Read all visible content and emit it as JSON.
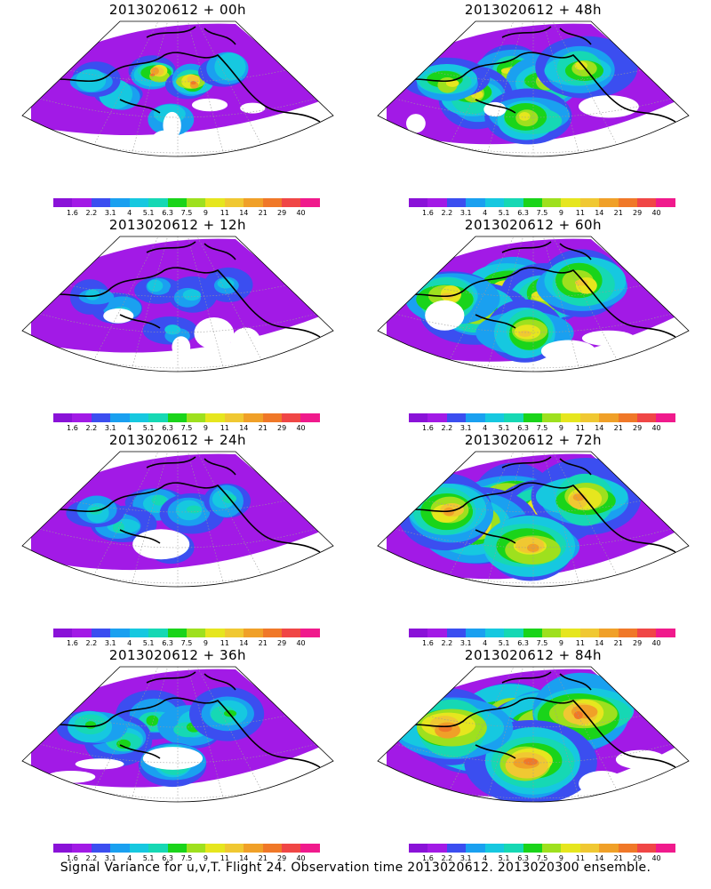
{
  "figure": {
    "caption": "Signal Variance for u,v,T. Flight 24. Observation time 2013020612. 2013020300 ensemble.",
    "panels": [
      {
        "title": "2013020612 + 00h",
        "lead_hours": 0
      },
      {
        "title": "2013020612 + 48h",
        "lead_hours": 48
      },
      {
        "title": "2013020612 + 12h",
        "lead_hours": 12
      },
      {
        "title": "2013020612 + 60h",
        "lead_hours": 60
      },
      {
        "title": "2013020612 + 24h",
        "lead_hours": 24
      },
      {
        "title": "2013020612 + 72h",
        "lead_hours": 72
      },
      {
        "title": "2013020612 + 36h",
        "lead_hours": 36
      },
      {
        "title": "2013020612 + 84h",
        "lead_hours": 84
      }
    ]
  },
  "colorbar": {
    "labels": [
      "1.6",
      "2.2",
      "3.1",
      "4",
      "5.1",
      "6.3",
      "7.5",
      "9",
      "11",
      "14",
      "21",
      "29",
      "40"
    ],
    "colors": [
      "#8a12d8",
      "#a21ae6",
      "#3b4ef0",
      "#1aa0f0",
      "#16c8e0",
      "#16d8b4",
      "#1ad41a",
      "#9ee01e",
      "#e6e61e",
      "#f0c832",
      "#f0a028",
      "#f07828",
      "#f04646",
      "#f01a8c"
    ]
  },
  "map_style": {
    "land_outline_color": "#000000",
    "graticule_color": "#9a9a9a"
  }
}
